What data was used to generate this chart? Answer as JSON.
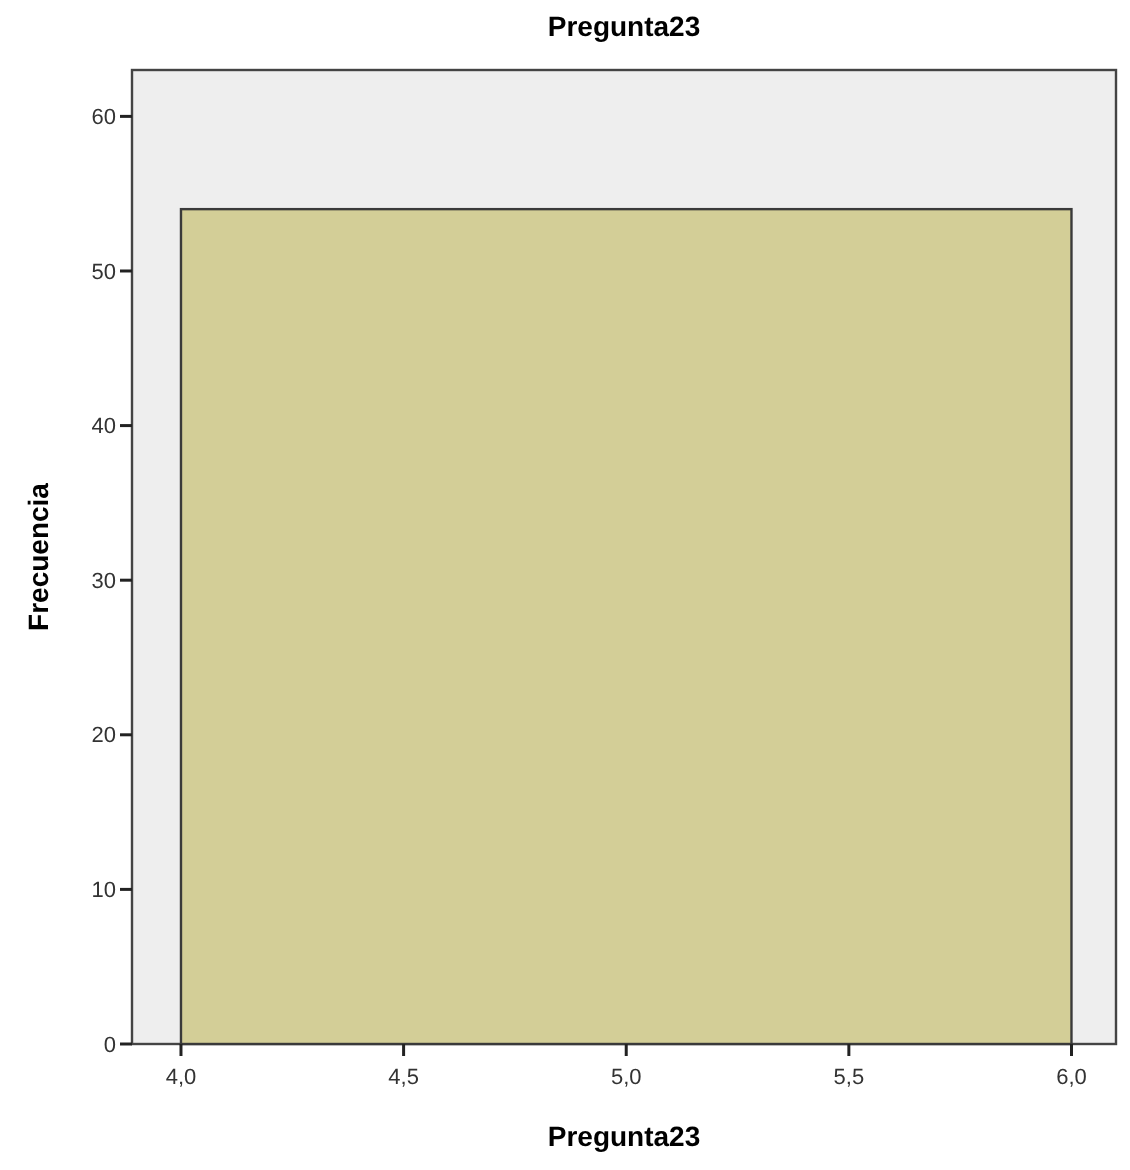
{
  "chart_data": {
    "type": "histogram",
    "title": "Pregunta23",
    "xlabel": "Pregunta23",
    "ylabel": "Frecuencia",
    "bins": [
      4,
      6
    ],
    "values": [
      54
    ],
    "color": "#d3ce97",
    "xlim": [
      3.89,
      6.1
    ],
    "xticks": [
      {
        "value": 4,
        "label": "4,0"
      },
      {
        "value": 4.5,
        "label": "4,5"
      },
      {
        "value": 5,
        "label": "5,0"
      },
      {
        "value": 5.5,
        "label": "5,5"
      },
      {
        "value": 6,
        "label": "6,0"
      }
    ],
    "ylim": [
      0,
      63
    ],
    "yticks": [
      0,
      10,
      20,
      30,
      40,
      50,
      60
    ],
    "grid": false
  }
}
